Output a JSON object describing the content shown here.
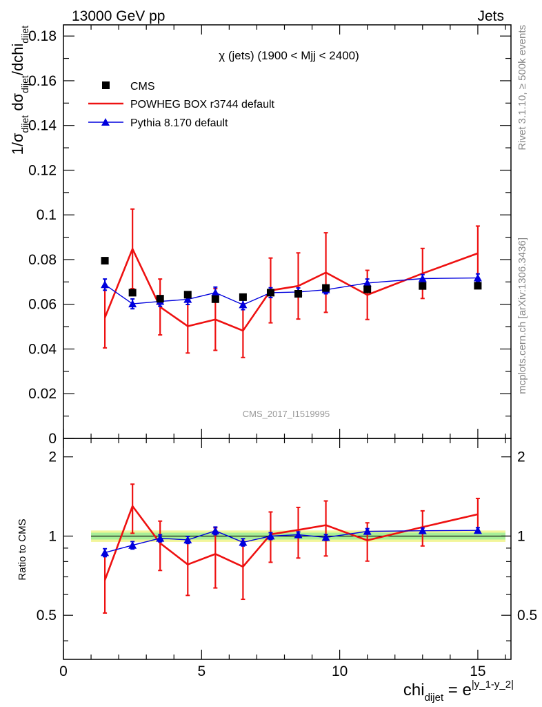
{
  "header": {
    "left": "13000 GeV pp",
    "right": "Jets"
  },
  "side_text": {
    "rivet": "Rivet 3.1.10, ≥ 500k events",
    "mcplots": "mcplots.cern.ch [arXiv:1306.3436]"
  },
  "main_plot": {
    "title": "χ (jets) (1900 < Mjj < 2400)",
    "ylabel": "1/σ_dijet dσ_dijet/dchi_dijet",
    "watermark": "CMS_2017_I1519995",
    "ylim": [
      0,
      0.185
    ],
    "yticks": [
      0,
      0.02,
      0.04,
      0.06,
      0.08,
      0.1,
      0.12,
      0.14,
      0.16,
      0.18
    ],
    "ytick_labels": [
      "0",
      "0.02",
      "0.04",
      "0.06",
      "0.08",
      "0.1",
      "0.12",
      "0.14",
      "0.16",
      "0.18"
    ]
  },
  "ratio_plot": {
    "ylabel": "Ratio to CMS",
    "yticks": [
      0.5,
      1,
      2
    ],
    "ytick_labels": [
      "0.5",
      "1",
      "2"
    ]
  },
  "xaxis": {
    "label": "chi_dijet = e^|y_1-y_2|",
    "xlim": [
      0,
      16.2
    ],
    "ticks": [
      0,
      5,
      10,
      15
    ],
    "tick_labels": [
      "0",
      "5",
      "10",
      "15"
    ]
  },
  "legend": {
    "entries": [
      {
        "label": "CMS",
        "style": "marker-square",
        "color": "#000000"
      },
      {
        "label": "POWHEG BOX r3744 default",
        "style": "line",
        "color": "#ee1111"
      },
      {
        "label": "Pythia 8.170 default",
        "style": "line-triangle",
        "color": "#0000dd"
      }
    ]
  },
  "colors": {
    "data": "#000000",
    "powheg": "#ee1111",
    "pythia": "#0000dd",
    "band_outer": "#f2f59a",
    "band_inner": "#a8ef98",
    "watermark": "#999999",
    "side_text": "#888888"
  },
  "chart_data": {
    "type": "scatter",
    "x_edges": [
      1,
      2,
      3,
      4,
      5,
      6,
      7,
      8,
      9,
      10,
      12,
      14,
      16
    ],
    "x": [
      1.5,
      2.5,
      3.5,
      4.5,
      5.5,
      6.5,
      7.5,
      8.5,
      9.5,
      11,
      13,
      15
    ],
    "series": [
      {
        "name": "CMS",
        "values": [
          0.0795,
          0.0652,
          0.0625,
          0.0643,
          0.0623,
          0.0632,
          0.0652,
          0.0647,
          0.0673,
          0.0667,
          0.0682,
          0.0683
        ],
        "band_inner": 0.03,
        "band_outer": 0.05
      },
      {
        "name": "POWHEG BOX r3744 default",
        "values": [
          0.054,
          0.0848,
          0.0588,
          0.0502,
          0.0532,
          0.0482,
          0.0662,
          0.0682,
          0.0742,
          0.0642,
          0.0738,
          0.0828
        ],
        "errors": [
          0.0135,
          0.0178,
          0.0125,
          0.012,
          0.0138,
          0.012,
          0.0145,
          0.0148,
          0.0178,
          0.011,
          0.0112,
          0.0122
        ]
      },
      {
        "name": "Pythia 8.170 default",
        "values": [
          0.0688,
          0.0602,
          0.0613,
          0.0622,
          0.0652,
          0.0598,
          0.0652,
          0.0655,
          0.0665,
          0.0695,
          0.0715,
          0.0718
        ],
        "errors": [
          0.0025,
          0.0022,
          0.0022,
          0.0023,
          0.0025,
          0.0022,
          0.0022,
          0.0018,
          0.0018,
          0.0018,
          0.0018,
          0.0018
        ]
      }
    ],
    "ratio": {
      "ylim": [
        0.34,
        2.35
      ],
      "ylog": true,
      "series": [
        {
          "name": "POWHEG BOX r3744 default",
          "values": [
            0.68,
            1.3,
            0.94,
            0.78,
            0.855,
            0.765,
            1.015,
            1.055,
            1.1,
            0.963,
            1.082,
            1.21
          ],
          "errors": [
            0.17,
            0.275,
            0.2,
            0.185,
            0.22,
            0.19,
            0.22,
            0.23,
            0.26,
            0.16,
            0.165,
            0.18
          ]
        },
        {
          "name": "Pythia 8.170 default",
          "values": [
            0.865,
            0.923,
            0.981,
            0.967,
            1.047,
            0.947,
            1.0,
            1.012,
            0.988,
            1.042,
            1.048,
            1.051
          ],
          "errors": [
            0.03,
            0.03,
            0.03,
            0.03,
            0.035,
            0.03,
            0.03,
            0.025,
            0.025,
            0.025,
            0.025,
            0.025
          ]
        }
      ]
    }
  }
}
